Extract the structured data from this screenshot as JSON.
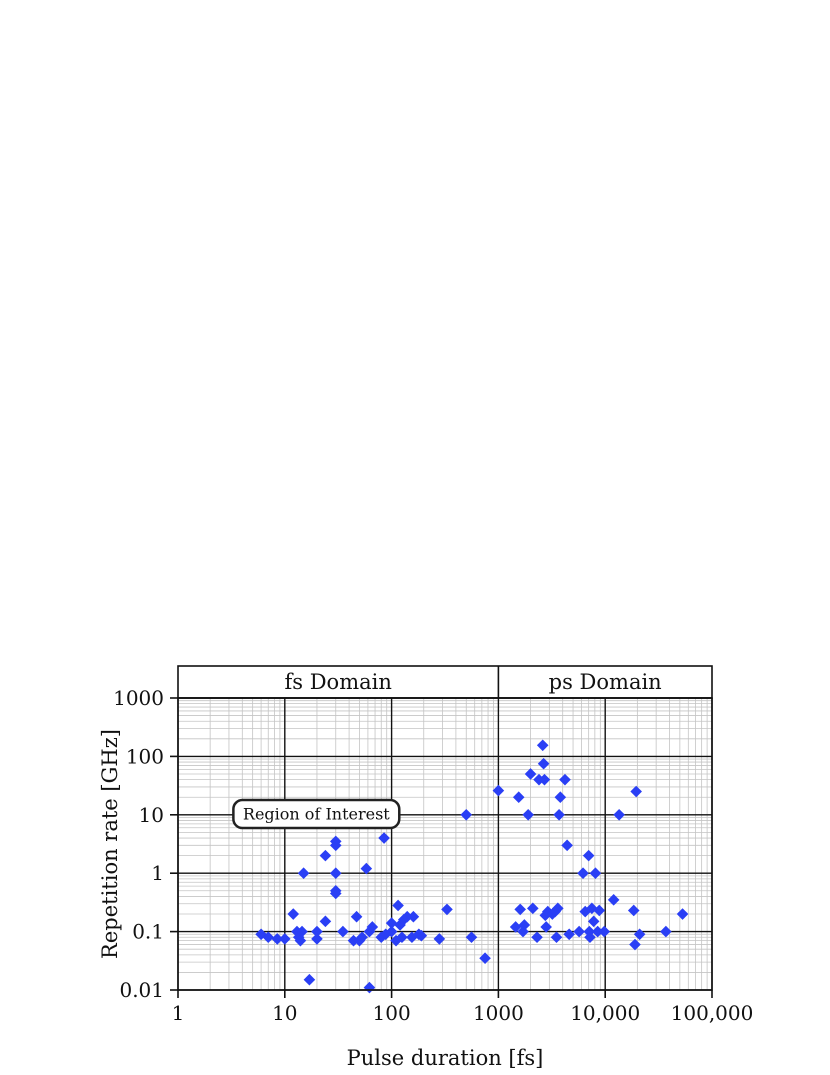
{
  "chart_data": {
    "type": "scatter",
    "xlabel": "Pulse duration [fs]",
    "ylabel": "Repetition rate [GHz]",
    "x_scale": "log",
    "y_scale": "log",
    "xlim": [
      1,
      100000
    ],
    "ylim": [
      0.01,
      1000
    ],
    "grid": true,
    "x_ticks": [
      1,
      10,
      100,
      1000,
      10000,
      100000
    ],
    "x_tick_labels": [
      "1",
      "10",
      "100",
      "1000",
      "10,000",
      "100,000"
    ],
    "y_ticks": [
      0.01,
      0.1,
      1,
      10,
      100,
      1000
    ],
    "y_tick_labels": [
      "0.01",
      "0.1",
      "1",
      "10",
      "100",
      "1000"
    ],
    "domains": [
      {
        "label": "fs Domain",
        "range": [
          1,
          1000
        ]
      },
      {
        "label": "ps Domain",
        "range": [
          1000,
          100000
        ]
      }
    ],
    "region_label": "Region of Interest",
    "marker_color": "#2a3ff5",
    "points": [
      [
        6,
        0.09
      ],
      [
        7,
        0.08
      ],
      [
        8.5,
        0.075
      ],
      [
        10,
        0.075
      ],
      [
        12,
        0.2
      ],
      [
        13,
        0.1
      ],
      [
        13.5,
        0.08
      ],
      [
        14,
        0.07
      ],
      [
        14.5,
        0.1
      ],
      [
        15,
        1.0
      ],
      [
        17,
        0.015
      ],
      [
        20,
        0.075
      ],
      [
        20,
        0.1
      ],
      [
        24,
        2.0
      ],
      [
        24,
        0.15
      ],
      [
        30,
        0.5
      ],
      [
        30,
        0.45
      ],
      [
        30,
        1.0
      ],
      [
        30,
        3.0
      ],
      [
        30,
        3.5
      ],
      [
        35,
        0.1
      ],
      [
        44,
        0.07
      ],
      [
        47,
        0.18
      ],
      [
        50,
        0.07
      ],
      [
        53,
        0.08
      ],
      [
        58,
        1.2
      ],
      [
        62,
        0.011
      ],
      [
        62,
        0.1
      ],
      [
        66,
        0.12
      ],
      [
        80,
        0.08
      ],
      [
        85,
        4.0
      ],
      [
        88,
        0.09
      ],
      [
        100,
        0.1
      ],
      [
        100,
        0.14
      ],
      [
        110,
        0.07
      ],
      [
        115,
        0.28
      ],
      [
        120,
        0.13
      ],
      [
        125,
        0.08
      ],
      [
        130,
        0.16
      ],
      [
        140,
        0.18
      ],
      [
        155,
        0.08
      ],
      [
        160,
        0.18
      ],
      [
        180,
        0.09
      ],
      [
        190,
        0.085
      ],
      [
        280,
        0.075
      ],
      [
        330,
        0.24
      ],
      [
        500,
        10
      ],
      [
        560,
        0.08
      ],
      [
        750,
        0.035
      ],
      [
        1000,
        26
      ],
      [
        1450,
        0.12
      ],
      [
        1550,
        20
      ],
      [
        1600,
        0.24
      ],
      [
        1700,
        0.1
      ],
      [
        1750,
        0.13
      ],
      [
        1900,
        10
      ],
      [
        2000,
        50
      ],
      [
        2100,
        0.25
      ],
      [
        2300,
        0.08
      ],
      [
        2400,
        40
      ],
      [
        2600,
        155
      ],
      [
        2650,
        75
      ],
      [
        2700,
        40
      ],
      [
        2750,
        0.19
      ],
      [
        2800,
        0.12
      ],
      [
        2900,
        0.22
      ],
      [
        3200,
        0.2
      ],
      [
        3400,
        0.22
      ],
      [
        3500,
        0.08
      ],
      [
        3600,
        0.25
      ],
      [
        3700,
        10
      ],
      [
        3800,
        20
      ],
      [
        4200,
        40
      ],
      [
        4400,
        3.0
      ],
      [
        4600,
        0.09
      ],
      [
        5700,
        0.1
      ],
      [
        6200,
        1.0
      ],
      [
        6500,
        0.22
      ],
      [
        7000,
        2.0
      ],
      [
        7100,
        0.1
      ],
      [
        7200,
        0.08
      ],
      [
        7500,
        0.25
      ],
      [
        7800,
        0.15
      ],
      [
        8100,
        1.0
      ],
      [
        8500,
        0.1
      ],
      [
        8800,
        0.23
      ],
      [
        9800,
        0.1
      ],
      [
        12000,
        0.35
      ],
      [
        13500,
        10
      ],
      [
        18500,
        0.23
      ],
      [
        19000,
        0.06
      ],
      [
        19500,
        25
      ],
      [
        21000,
        0.09
      ],
      [
        37000,
        0.1
      ],
      [
        53000,
        0.2
      ]
    ]
  }
}
